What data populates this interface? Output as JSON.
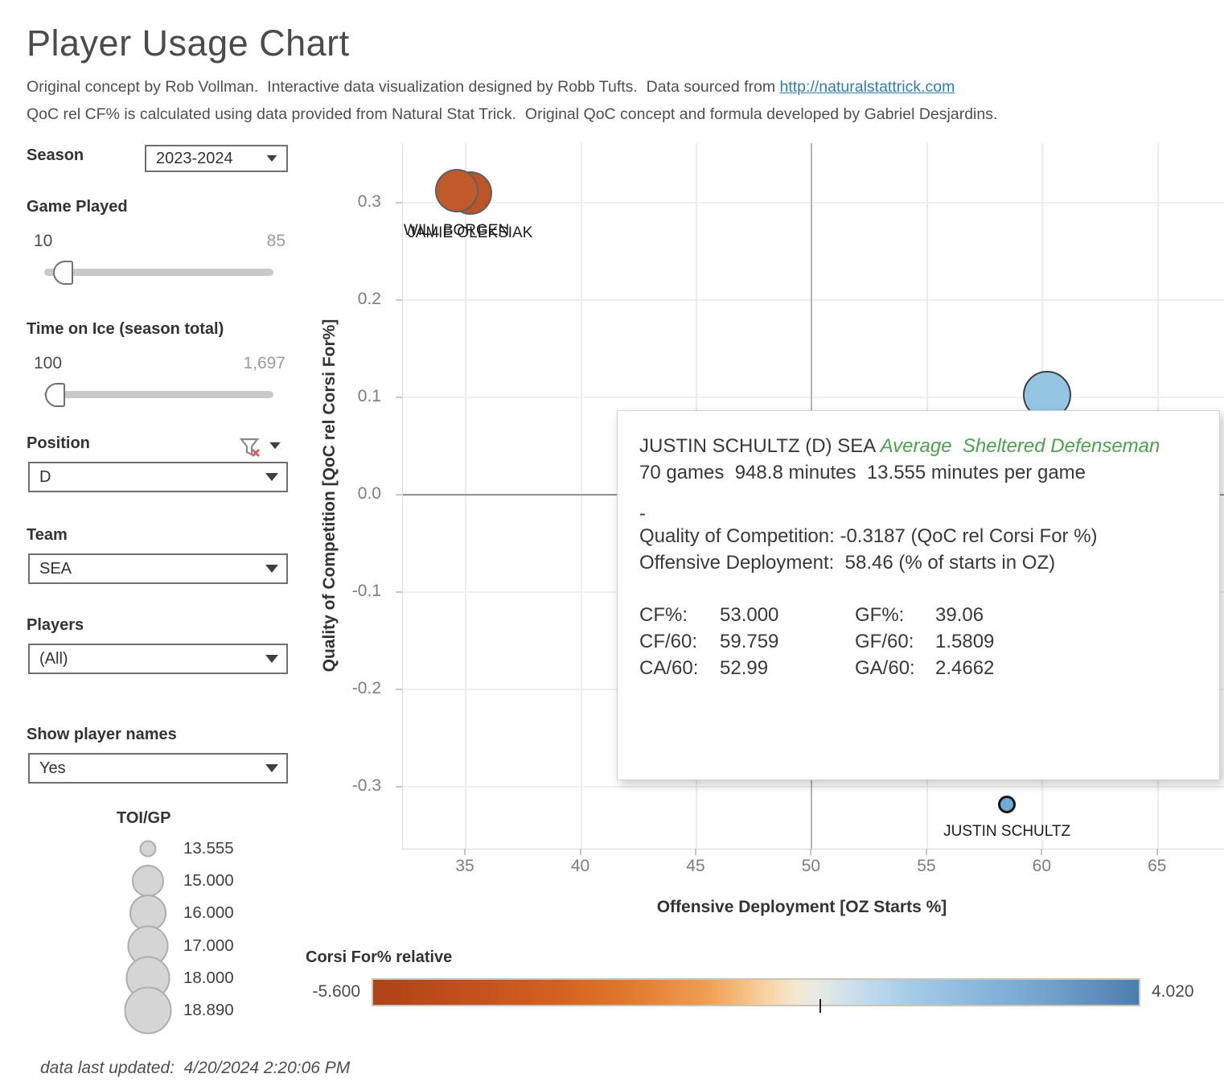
{
  "header": {
    "title": "Player Usage Chart",
    "credit_prefix": "Original concept by Rob Vollman.  Interactive data visualization designed by Robb Tufts.  Data sourced from ",
    "credit_link": "http://naturalstattrick.com",
    "credit_line2": "QoC rel CF% is calculated using data provided from Natural Stat Trick.  Original QoC concept and formula developed by Gabriel Desjardins."
  },
  "filters": {
    "season": {
      "label": "Season",
      "value": "2023-2024"
    },
    "games": {
      "label": "Game Played",
      "min": "10",
      "max": "85"
    },
    "toi": {
      "label": "Time on Ice (season total)",
      "min": "100",
      "max": "1,697"
    },
    "position": {
      "label": "Position",
      "value": "D"
    },
    "team": {
      "label": "Team",
      "value": "SEA"
    },
    "players": {
      "label": "Players",
      "value": "(All)"
    },
    "show_names": {
      "label": "Show player names",
      "value": "Yes"
    }
  },
  "size_legend": {
    "title": "TOI/GP",
    "items": [
      {
        "label": "13.555",
        "d": 21
      },
      {
        "label": "15.000",
        "d": 40
      },
      {
        "label": "16.000",
        "d": 46
      },
      {
        "label": "17.000",
        "d": 51
      },
      {
        "label": "18.000",
        "d": 55
      },
      {
        "label": "18.890",
        "d": 59
      }
    ]
  },
  "tooltip": {
    "player": "JUSTIN SCHULTZ (D) SEA ",
    "descriptor": "Average  Sheltered Defenseman",
    "summary": "70 games  948.8 minutes  13.555 minutes per game",
    "dash": "-",
    "qoc_line": "Quality of Competition: -0.3187 (QoC rel Corsi For %)",
    "od_line": "Offensive Deployment:  58.46 (% of starts in OZ)",
    "stats": [
      {
        "l1": "CF%:",
        "v1": "53.000",
        "l2": "GF%:",
        "v2": "39.06"
      },
      {
        "l1": "CF/60:",
        "v1": "59.759",
        "l2": "GF/60:",
        "v2": "1.5809"
      },
      {
        "l1": "CA/60:",
        "v1": "52.99",
        "l2": "GA/60:",
        "v2": "2.4662"
      }
    ]
  },
  "color_legend": {
    "title": "Corsi For% relative",
    "min_label": "-5.600",
    "max_label": "4.020",
    "min_value": -5.6,
    "max_value": 4.02,
    "zero_value": 0,
    "color_negative": "#ad4317",
    "color_positive": "#4d7fae"
  },
  "footer": "data last updated:  4/20/2024 2:20:06 PM",
  "chart_data": {
    "type": "scatter",
    "xlabel": "Offensive Deployment [OZ Starts %]",
    "ylabel": "Quality of Competition [QoC rel Corsi For%]",
    "xlim": [
      32.28,
      67.9
    ],
    "ylim": [
      -0.364,
      0.361
    ],
    "x_ticks": [
      "35",
      "40",
      "45",
      "50",
      "55",
      "60",
      "65"
    ],
    "y_ticks": [
      "0.3",
      "0.2",
      "0.1",
      "0.0",
      "-0.1",
      "-0.2",
      "-0.3"
    ],
    "x_ref": 50,
    "y_ref": 0,
    "grid": true,
    "points": [
      {
        "name": "JAMIE OLEKSIAK",
        "x": 35.2,
        "y": 0.31,
        "r": 27,
        "fill": "#bd5428",
        "stroke": "#5f5f5f",
        "stroke_w": 2,
        "selected": false
      },
      {
        "name": "WILL BORGEN",
        "x": 34.6,
        "y": 0.312,
        "r": 27,
        "fill": "#c05a2b",
        "stroke": "#5f5f5f",
        "stroke_w": 2,
        "selected": false
      },
      {
        "name": "",
        "x": 60.2,
        "y": 0.102,
        "r": 30,
        "fill": "#94c6e4",
        "stroke": "#3f3f3f",
        "stroke_w": 2.5,
        "selected": false
      },
      {
        "name": "JUSTIN SCHULTZ",
        "x": 58.46,
        "y": -0.3187,
        "r": 11,
        "fill": "#70abd6",
        "stroke": "#141414",
        "stroke_w": 3.5,
        "selected": true
      }
    ]
  }
}
